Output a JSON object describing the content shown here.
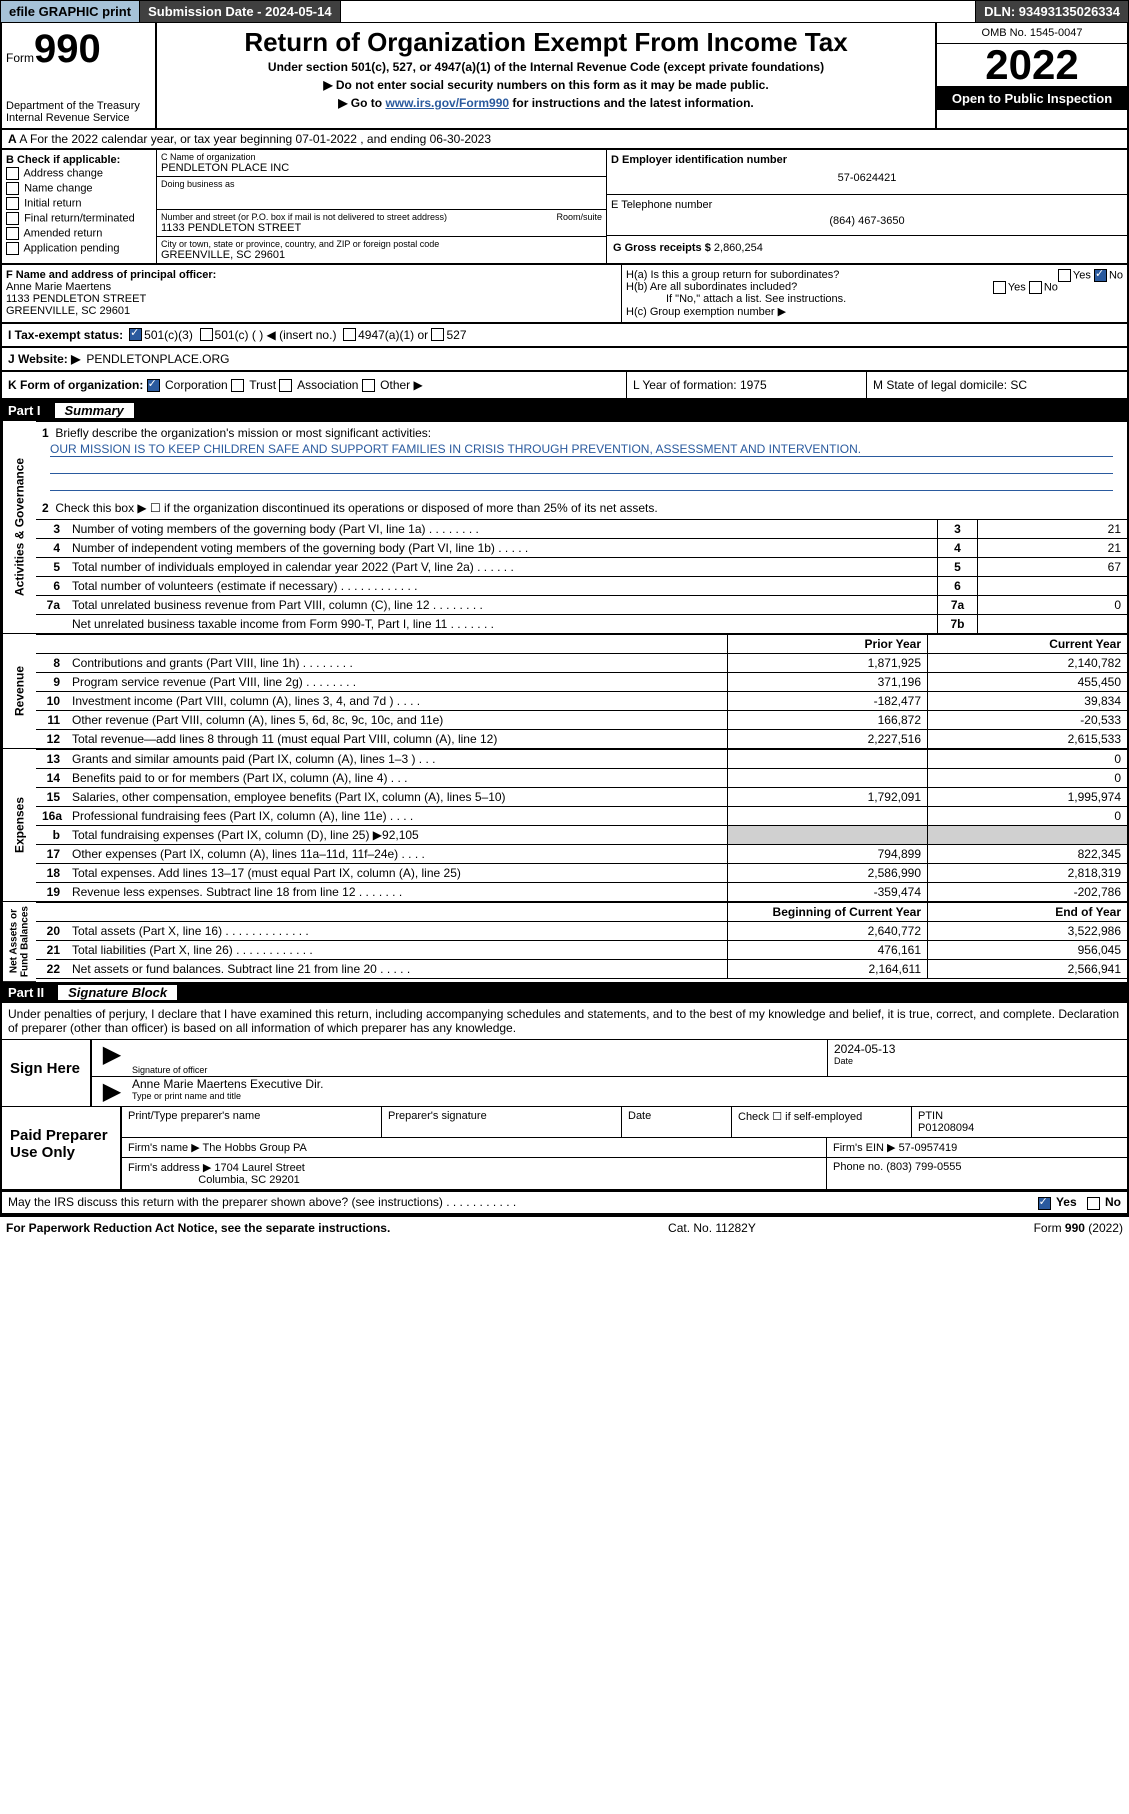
{
  "topbar": {
    "efile": "efile GRAPHIC print",
    "submission": "Submission Date - 2024-05-14",
    "dln": "DLN: 93493135026334"
  },
  "header": {
    "form_label": "Form",
    "form_num": "990",
    "title": "Return of Organization Exempt From Income Tax",
    "sub1": "Under section 501(c), 527, or 4947(a)(1) of the Internal Revenue Code (except private foundations)",
    "sub2": "▶ Do not enter social security numbers on this form as it may be made public.",
    "sub3_pre": "▶ Go to ",
    "sub3_link": "www.irs.gov/Form990",
    "sub3_post": " for instructions and the latest information.",
    "dept": "Department of the Treasury\nInternal Revenue Service",
    "omb": "OMB No. 1545-0047",
    "year": "2022",
    "inspect": "Open to Public Inspection"
  },
  "rowA": "A For the 2022 calendar year, or tax year beginning 07-01-2022  , and ending 06-30-2023",
  "boxB": {
    "label": "B Check if applicable:",
    "items": [
      "Address change",
      "Name change",
      "Initial return",
      "Final return/terminated",
      "Amended return",
      "Application pending"
    ]
  },
  "boxC": {
    "name_label": "C Name of organization",
    "name": "PENDLETON PLACE INC",
    "dba_label": "Doing business as",
    "dba": "",
    "street_label": "Number and street (or P.O. box if mail is not delivered to street address)",
    "room_label": "Room/suite",
    "street": "1133 PENDLETON STREET",
    "city_label": "City or town, state or province, country, and ZIP or foreign postal code",
    "city": "GREENVILLE, SC  29601"
  },
  "boxD": {
    "lbl": "D Employer identification number",
    "val": "57-0624421"
  },
  "boxE": {
    "lbl": "E Telephone number",
    "val": "(864) 467-3650"
  },
  "boxG": {
    "lbl": "G Gross receipts $",
    "val": "2,860,254"
  },
  "boxF": {
    "lbl": "F Name and address of principal officer:",
    "name": "Anne Marie Maertens",
    "addr1": "1133 PENDLETON STREET",
    "addr2": "GREENVILLE, SC  29601"
  },
  "boxH": {
    "ha": "H(a)  Is this a group return for subordinates?",
    "hb": "H(b)  Are all subordinates included?",
    "hb2": "If \"No,\" attach a list. See instructions.",
    "hc": "H(c)  Group exemption number ▶",
    "yes": "Yes",
    "no": "No"
  },
  "rowI": {
    "lbl": "I  Tax-exempt status:",
    "opt1": "501(c)(3)",
    "opt2": "501(c) (  ) ◀ (insert no.)",
    "opt3": "4947(a)(1) or",
    "opt4": "527"
  },
  "rowJ": {
    "lbl": "J  Website: ▶ ",
    "val": "PENDLETONPLACE.ORG"
  },
  "rowK": {
    "lbl": "K Form of organization:",
    "opts": [
      "Corporation",
      "Trust",
      "Association",
      "Other ▶"
    ],
    "form_check": [
      true,
      false,
      false,
      false
    ]
  },
  "rowL": {
    "lbl": "L Year of formation: 1975"
  },
  "rowM": {
    "lbl": "M State of legal domicile: SC"
  },
  "part1": {
    "num": "Part I",
    "name": "Summary"
  },
  "part2": {
    "num": "Part II",
    "name": "Signature Block"
  },
  "vtabs": {
    "gov": "Activities & Governance",
    "rev": "Revenue",
    "exp": "Expenses",
    "net": "Net Assets or\nFund Balances"
  },
  "summary": {
    "line1_label": "Briefly describe the organization's mission or most significant activities:",
    "mission": "OUR MISSION IS TO KEEP CHILDREN SAFE AND SUPPORT FAMILIES IN CRISIS THROUGH PREVENTION, ASSESSMENT AND INTERVENTION.",
    "line2": "Check this box ▶ ☐  if the organization discontinued its operations or disposed of more than 25% of its net assets.",
    "prior_hdr": "Prior Year",
    "current_hdr": "Current Year",
    "begin_hdr": "Beginning of Current Year",
    "end_hdr": "End of Year",
    "rows_gov": [
      {
        "n": "3",
        "t": "Number of voting members of the governing body (Part VI, line 1a)  .   .   .   .   .   .   .   .",
        "box": "3",
        "v": "21"
      },
      {
        "n": "4",
        "t": "Number of independent voting members of the governing body (Part VI, line 1b)  .   .   .   .   .",
        "box": "4",
        "v": "21"
      },
      {
        "n": "5",
        "t": "Total number of individuals employed in calendar year 2022 (Part V, line 2a)  .   .   .   .   .   .",
        "box": "5",
        "v": "67"
      },
      {
        "n": "6",
        "t": "Total number of volunteers (estimate if necessary)  .   .   .   .   .   .   .   .   .   .   .   .",
        "box": "6",
        "v": ""
      },
      {
        "n": "7a",
        "t": "Total unrelated business revenue from Part VIII, column (C), line 12  .   .   .   .   .   .   .   .",
        "box": "7a",
        "v": "0"
      },
      {
        "n": "",
        "t": "Net unrelated business taxable income from Form 990-T, Part I, line 11  .   .   .   .   .   .   .",
        "box": "7b",
        "v": ""
      }
    ],
    "rows_rev": [
      {
        "n": "8",
        "t": "Contributions and grants (Part VIII, line 1h)   .   .   .   .   .   .   .   .",
        "p": "1,871,925",
        "c": "2,140,782"
      },
      {
        "n": "9",
        "t": "Program service revenue (Part VIII, line 2g)  .   .   .   .   .   .   .   .",
        "p": "371,196",
        "c": "455,450"
      },
      {
        "n": "10",
        "t": "Investment income (Part VIII, column (A), lines 3, 4, and 7d )   .   .   .   .",
        "p": "-182,477",
        "c": "39,834"
      },
      {
        "n": "11",
        "t": "Other revenue (Part VIII, column (A), lines 5, 6d, 8c, 9c, 10c, and 11e)",
        "p": "166,872",
        "c": "-20,533"
      },
      {
        "n": "12",
        "t": "Total revenue—add lines 8 through 11 (must equal Part VIII, column (A), line 12)",
        "p": "2,227,516",
        "c": "2,615,533"
      }
    ],
    "rows_exp": [
      {
        "n": "13",
        "t": "Grants and similar amounts paid (Part IX, column (A), lines 1–3 )  .   .   .",
        "p": "",
        "c": "0"
      },
      {
        "n": "14",
        "t": "Benefits paid to or for members (Part IX, column (A), line 4)  .   .   .",
        "p": "",
        "c": "0"
      },
      {
        "n": "15",
        "t": "Salaries, other compensation, employee benefits (Part IX, column (A), lines 5–10)",
        "p": "1,792,091",
        "c": "1,995,974"
      },
      {
        "n": "16a",
        "t": "Professional fundraising fees (Part IX, column (A), line 11e)  .   .   .   .",
        "p": "",
        "c": "0"
      },
      {
        "n": "b",
        "t": "Total fundraising expenses (Part IX, column (D), line 25) ▶92,105",
        "p": "shade",
        "c": "shade"
      },
      {
        "n": "17",
        "t": "Other expenses (Part IX, column (A), lines 11a–11d, 11f–24e)  .   .   .   .",
        "p": "794,899",
        "c": "822,345"
      },
      {
        "n": "18",
        "t": "Total expenses. Add lines 13–17 (must equal Part IX, column (A), line 25)",
        "p": "2,586,990",
        "c": "2,818,319"
      },
      {
        "n": "19",
        "t": "Revenue less expenses. Subtract line 18 from line 12  .   .   .   .   .   .   .",
        "p": "-359,474",
        "c": "-202,786"
      }
    ],
    "rows_net": [
      {
        "n": "20",
        "t": "Total assets (Part X, line 16)  .   .   .   .   .   .   .   .   .   .   .   .   .",
        "p": "2,640,772",
        "c": "3,522,986"
      },
      {
        "n": "21",
        "t": "Total liabilities (Part X, line 26)  .   .   .   .   .   .   .   .   .   .   .   .",
        "p": "476,161",
        "c": "956,045"
      },
      {
        "n": "22",
        "t": "Net assets or fund balances. Subtract line 21 from line 20  .   .   .   .   .",
        "p": "2,164,611",
        "c": "2,566,941"
      }
    ]
  },
  "sig": {
    "declare": "Under penalties of perjury, I declare that I have examined this return, including accompanying schedules and statements, and to the best of my knowledge and belief, it is true, correct, and complete. Declaration of preparer (other than officer) is based on all information of which preparer has any knowledge.",
    "sign_here": "Sign Here",
    "sig_officer": "Signature of officer",
    "date_lbl": "Date",
    "date_val": "2024-05-13",
    "name_title": "Anne Marie Maertens  Executive Dir.",
    "type_lbl": "Type or print name and title",
    "paid_lbl": "Paid Preparer Use Only",
    "print_name_lbl": "Print/Type preparer's name",
    "prep_sig_lbl": "Preparer's signature",
    "check_self": "Check ☐ if self-employed",
    "ptin_lbl": "PTIN",
    "ptin": "P01208094",
    "firm_name_lbl": "Firm's name   ▶",
    "firm_name": "The Hobbs Group PA",
    "firm_ein_lbl": "Firm's EIN ▶",
    "firm_ein": "57-0957419",
    "firm_addr_lbl": "Firm's address ▶",
    "firm_addr": "1704 Laurel Street",
    "firm_addr2": "Columbia, SC  29201",
    "phone_lbl": "Phone no.",
    "phone": "(803) 799-0555"
  },
  "may": {
    "text": "May the IRS discuss this return with the preparer shown above? (see instructions)  .   .   .   .   .   .   .   .   .   .   .",
    "yes": "Yes",
    "no": "No"
  },
  "footer": {
    "left": "For Paperwork Reduction Act Notice, see the separate instructions.",
    "mid": "Cat. No. 11282Y",
    "right": "Form 990 (2022)"
  }
}
